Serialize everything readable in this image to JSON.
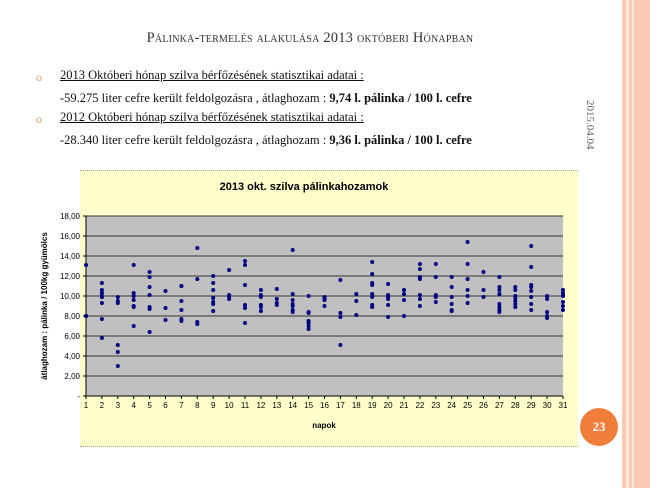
{
  "slide": {
    "title": "Pálinka-termelés alakulása 2013 októberi Hónapban",
    "date": "2015.04.04",
    "page_number": "23",
    "bullets": [
      {
        "heading": "2013 Októberi hónap szilva bérfőzésének statisztikai adatai :",
        "detail_plain": "-59.275 liter cefre került feldolgozásra , átlaghozam : ",
        "detail_bold": "9,74 l. pálinka / 100 l. cefre"
      },
      {
        "heading": "2012 Októberi hónap szilva bérfőzésének statisztikai adatai :",
        "detail_plain": "-28.340 liter cefre került feldolgozásra , átlaghozam : ",
        "detail_bold": "9,36 l. pálinka / 100 l. cefre"
      }
    ]
  },
  "colors": {
    "accent": "#f07e3a",
    "strip": "#f7c4ad",
    "chart_bg": "#ffffcc",
    "plot_bg": "#c0c0c0",
    "marker": "#000080"
  },
  "chart_data": {
    "type": "scatter",
    "title": "2013 okt. szilva pálinkahozamok",
    "xlabel": "napok",
    "ylabel": "átlaghozam : pálinka / 100kg gyümölcs",
    "xlim": [
      1,
      31
    ],
    "ylim": [
      0,
      18
    ],
    "yticks": [
      "-",
      "2,00",
      "4,00",
      "6,00",
      "8,00",
      "10,00",
      "12,00",
      "14,00",
      "16,00",
      "18,00"
    ],
    "xticks": [
      "1",
      "2",
      "3",
      "4",
      "5",
      "6",
      "7",
      "8",
      "9",
      "10",
      "11",
      "12",
      "13",
      "14",
      "15",
      "16",
      "17",
      "18",
      "19",
      "20",
      "21",
      "22",
      "23",
      "24",
      "25",
      "26",
      "27",
      "28",
      "29",
      "30",
      "31"
    ],
    "grid": "horizontal",
    "legend": "none",
    "points_by_day": {
      "1": [
        13.1,
        8.0,
        8.0
      ],
      "2": [
        11.3,
        10.6,
        10.3,
        10.0,
        9.9,
        9.3,
        7.7,
        5.8
      ],
      "3": [
        9.9,
        9.5,
        9.3,
        5.1,
        4.4,
        3.0
      ],
      "4": [
        13.1,
        10.3,
        10.0,
        9.6,
        9.0,
        8.9,
        7.0
      ],
      "5": [
        12.4,
        11.9,
        10.9,
        10.1,
        8.9,
        8.7,
        6.4
      ],
      "6": [
        10.5,
        8.8,
        7.6
      ],
      "7": [
        11.0,
        11.0,
        9.5,
        8.6,
        7.7,
        7.5
      ],
      "8": [
        14.8,
        11.7,
        7.4,
        7.2
      ],
      "9": [
        12.0,
        11.3,
        10.6,
        9.8,
        9.4,
        9.2,
        8.5
      ],
      "10": [
        12.6,
        10.1,
        9.9,
        9.7
      ],
      "11": [
        13.5,
        13.1,
        11.1,
        9.1,
        8.8,
        7.3
      ],
      "12": [
        10.6,
        10.1,
        9.9,
        9.1,
        8.9,
        8.5
      ],
      "13": [
        10.7,
        9.7,
        9.3,
        9.1
      ],
      "14": [
        14.6,
        10.2,
        9.6,
        9.2,
        9.0,
        8.6,
        8.4
      ],
      "15": [
        10.0,
        8.4,
        8.3,
        7.5,
        7.3,
        7.0,
        6.7
      ],
      "16": [
        9.9,
        9.7,
        9.6,
        9.0
      ],
      "17": [
        11.6,
        8.3,
        7.9,
        5.1
      ],
      "18": [
        10.2,
        9.5,
        8.1
      ],
      "19": [
        13.4,
        12.2,
        11.3,
        11.1,
        10.2,
        9.9,
        9.1,
        8.9
      ],
      "20": [
        11.2,
        10.1,
        9.9,
        9.7,
        9.1,
        7.9
      ],
      "21": [
        10.6,
        10.2,
        9.6,
        8.0
      ],
      "22": [
        13.2,
        12.7,
        11.9,
        11.7,
        10.1,
        9.7,
        9.0
      ],
      "23": [
        13.2,
        11.9,
        10.1,
        9.9,
        9.4
      ],
      "24": [
        11.9,
        10.9,
        9.9,
        9.2,
        8.6,
        8.5
      ],
      "25": [
        15.4,
        13.2,
        11.7,
        10.6,
        10.0,
        9.3
      ],
      "26": [
        12.4,
        10.6,
        9.9
      ],
      "27": [
        11.9,
        10.9,
        10.6,
        10.2,
        9.2,
        8.9,
        8.6,
        8.4
      ],
      "28": [
        10.9,
        10.6,
        10.0,
        9.8,
        9.5,
        9.2,
        8.9
      ],
      "29": [
        15.0,
        12.9,
        11.1,
        10.9,
        10.5,
        9.9,
        9.2,
        8.6
      ],
      "30": [
        10.0,
        9.7,
        8.4,
        8.0,
        7.8
      ],
      "31": [
        10.6,
        10.3,
        10.1,
        10.0,
        9.4,
        9.0,
        8.6
      ]
    }
  }
}
